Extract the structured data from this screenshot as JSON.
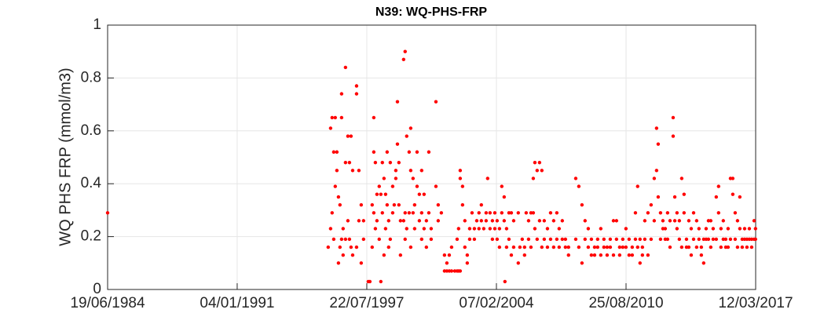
{
  "chart_data": {
    "type": "scatter",
    "title": "N39: WQ-PHS-FRP",
    "ylabel": "WQ PHS FRP (mmol/m3)",
    "color": "#ff0000",
    "grid": true,
    "xlim": [
      "19/06/1984",
      "12/03/2017"
    ],
    "xticks": [
      "19/06/1984",
      "04/01/1991",
      "22/07/1997",
      "07/02/2004",
      "25/08/2010",
      "12/03/2017"
    ],
    "ylim": [
      0,
      1
    ],
    "yticks": [
      0,
      0.2,
      0.4,
      0.6,
      0.8,
      1
    ],
    "x": [
      "19/06/1984",
      "10/08/1995",
      "23/09/1995",
      "23/09/1995",
      "21/10/1995",
      "21/10/1995",
      "20/11/1995",
      "20/11/1995",
      "18/12/1995",
      "18/12/1995",
      "17/01/1996",
      "17/01/1996",
      "15/02/1996",
      "15/02/1996",
      "14/03/1996",
      "14/03/1996",
      "13/04/1996",
      "13/04/1996",
      "13/04/1996",
      "11/05/1996",
      "11/05/1996",
      "24/06/1996",
      "24/06/1996",
      "24/06/1996",
      "07/08/1996",
      "07/08/1996",
      "05/09/1996",
      "05/09/1996",
      "04/10/1996",
      "04/10/1996",
      "03/11/1996",
      "03/11/1996",
      "14/01/1997",
      "14/01/1997",
      "14/01/1997",
      "26/02/1997",
      "26/02/1997",
      "10/04/1997",
      "10/04/1997",
      "23/05/1997",
      "23/05/1997",
      "18/08/1997",
      "17/09/1997",
      "29/10/1997",
      "29/10/1997",
      "28/11/1997",
      "28/11/1997",
      "28/11/1997",
      "27/12/1997",
      "27/12/1997",
      "25/01/1998",
      "25/01/1998",
      "08/03/1998",
      "08/03/1998",
      "07/04/1998",
      "07/04/1998",
      "05/05/1998",
      "05/05/1998",
      "04/06/1998",
      "04/06/1998",
      "03/07/1998",
      "03/07/1998",
      "01/08/1998",
      "01/08/1998",
      "29/08/1998",
      "29/08/1998",
      "28/09/1998",
      "28/09/1998",
      "11/11/1998",
      "11/11/1998",
      "10/12/1998",
      "08/01/1999",
      "08/01/1999",
      "07/02/1999",
      "07/02/1999",
      "06/03/1999",
      "06/03/1999",
      "04/04/1999",
      "04/04/1999",
      "01/06/1999",
      "01/06/1999",
      "29/06/1999",
      "29/06/1999",
      "29/06/1999",
      "28/07/1999",
      "28/07/1999",
      "11/09/1999",
      "11/09/1999",
      "10/10/1999",
      "10/10/1999",
      "10/10/1999",
      "22/11/1999",
      "22/11/1999",
      "21/12/1999",
      "21/12/1999",
      "04/02/2000",
      "04/02/2000",
      "17/03/2000",
      "17/03/2000",
      "29/04/2000",
      "29/04/2000",
      "29/04/2000",
      "12/06/2000",
      "12/06/2000",
      "25/07/2000",
      "25/07/2000",
      "08/09/2000",
      "08/09/2000",
      "21/10/2000",
      "21/10/2000",
      "17/01/2001",
      "17/01/2001",
      "28/02/2001",
      "28/02/2001",
      "27/04/2001",
      "24/06/2001",
      "24/06/2001",
      "07/08/2001",
      "07/08/2001",
      "20/09/2001",
      "20/09/2001",
      "02/11/2001",
      "02/11/2001",
      "30/12/2001",
      "12/02/2002",
      "12/02/2002",
      "11/03/2002",
      "11/03/2002",
      "10/04/2002",
      "10/04/2002",
      "10/04/2002",
      "23/05/2002",
      "23/05/2002",
      "05/07/2002",
      "05/07/2002",
      "18/08/2002",
      "18/08/2002",
      "01/10/2002",
      "01/10/2002",
      "14/11/2002",
      "27/12/2002",
      "27/12/2002",
      "09/02/2003",
      "22/03/2003",
      "22/03/2003",
      "05/05/2003",
      "05/05/2003",
      "18/06/2003",
      "01/08/2003",
      "01/08/2003",
      "29/08/2003",
      "12/10/2003",
      "12/10/2003",
      "25/11/2003",
      "25/11/2003",
      "08/01/2004",
      "08/01/2004",
      "20/02/2004",
      "20/02/2004",
      "03/04/2004",
      "03/04/2004",
      "16/05/2004",
      "16/05/2004",
      "29/06/2004",
      "29/06/2004",
      "13/07/2004",
      "12/08/2004",
      "12/08/2004",
      "25/09/2004",
      "25/09/2004",
      "08/11/2004",
      "08/11/2004",
      "21/12/2004",
      "21/12/2004",
      "16/03/2005",
      "16/03/2005",
      "15/04/2005",
      "28/05/2005",
      "10/07/2005",
      "10/07/2005",
      "09/08/2005",
      "22/09/2005",
      "22/09/2005",
      "05/11/2005",
      "05/11/2005",
      "18/12/2005",
      "18/12/2005",
      "16/01/2006",
      "16/01/2006",
      "27/02/2006",
      "27/02/2006",
      "12/04/2006",
      "12/04/2006",
      "25/05/2006",
      "25/05/2006",
      "08/07/2006",
      "08/07/2006",
      "05/09/2006",
      "05/09/2006",
      "02/11/2006",
      "02/11/2006",
      "29/12/2006",
      "29/12/2006",
      "25/02/2007",
      "25/02/2007",
      "09/04/2007",
      "09/04/2007",
      "06/06/2007",
      "06/06/2007",
      "03/08/2007",
      "03/08/2007",
      "29/09/2007",
      "29/09/2007",
      "09/02/2008",
      "09/02/2008",
      "06/04/2008",
      "06/04/2008",
      "03/06/2008",
      "03/06/2008",
      "30/07/2008",
      "30/07/2008",
      "27/09/2008",
      "27/09/2008",
      "24/11/2008",
      "24/11/2008",
      "22/01/2009",
      "22/01/2009",
      "19/03/2009",
      "19/03/2009",
      "16/05/2009",
      "16/05/2009",
      "13/07/2009",
      "13/07/2009",
      "10/09/2009",
      "10/09/2009",
      "07/11/2009",
      "07/11/2009",
      "05/01/2010",
      "05/01/2010",
      "02/03/2010",
      "02/03/2010",
      "29/04/2010",
      "29/04/2010",
      "26/06/2010",
      "26/06/2010",
      "23/08/2010",
      "23/08/2010",
      "20/10/2010",
      "20/10/2010",
      "17/12/2010",
      "17/12/2010",
      "14/02/2011",
      "14/02/2011",
      "27/03/2011",
      "27/03/2011",
      "10/05/2011",
      "10/05/2011",
      "23/06/2011",
      "23/06/2011",
      "06/08/2011",
      "06/08/2011",
      "03/10/2011",
      "03/10/2011",
      "30/11/2011",
      "30/11/2011",
      "27/01/2012",
      "27/01/2012",
      "10/03/2012",
      "10/03/2012",
      "09/04/2012",
      "09/04/2012",
      "22/05/2012",
      "22/05/2012",
      "05/07/2012",
      "05/07/2012",
      "17/08/2012",
      "17/08/2012",
      "29/09/2012",
      "29/09/2012",
      "13/11/2012",
      "13/11/2012",
      "10/01/2013",
      "10/01/2013",
      "09/02/2013",
      "09/02/2013",
      "22/03/2013",
      "22/03/2013",
      "04/05/2013",
      "04/05/2013",
      "17/06/2013",
      "17/06/2013",
      "30/07/2013",
      "30/07/2013",
      "13/09/2013",
      "13/09/2013",
      "26/10/2013",
      "26/10/2013",
      "09/12/2013",
      "09/12/2013",
      "22/01/2014",
      "22/01/2014",
      "19/03/2014",
      "19/03/2014",
      "01/05/2014",
      "01/05/2014",
      "14/06/2014",
      "14/06/2014",
      "27/07/2014",
      "27/07/2014",
      "10/09/2014",
      "10/09/2014",
      "23/10/2014",
      "23/10/2014",
      "05/12/2014",
      "05/12/2014",
      "18/01/2015",
      "18/01/2015",
      "16/03/2015",
      "16/03/2015",
      "28/04/2015",
      "28/04/2015",
      "11/06/2015",
      "11/06/2015",
      "24/07/2015",
      "24/07/2015",
      "07/09/2015",
      "07/09/2015",
      "20/10/2015",
      "20/10/2015",
      "03/12/2015",
      "03/12/2015",
      "15/01/2016",
      "15/01/2016",
      "28/02/2016",
      "28/02/2016",
      "11/04/2016",
      "11/04/2016",
      "24/05/2016",
      "24/05/2016",
      "07/07/2016",
      "07/07/2016",
      "20/08/2016",
      "20/08/2016",
      "02/10/2016",
      "02/10/2016",
      "15/11/2016",
      "15/11/2016",
      "28/12/2016",
      "28/12/2016",
      "11/02/2017",
      "11/02/2017",
      "09/03/2017",
      "09/03/2017"
    ],
    "values": [
      0.29,
      0.16,
      0.61,
      0.23,
      0.65,
      0.29,
      0.52,
      0.19,
      0.65,
      0.39,
      0.52,
      0.45,
      0.35,
      0.1,
      0.16,
      0.32,
      0.74,
      0.65,
      0.19,
      0.23,
      0.13,
      0.84,
      0.48,
      0.19,
      0.58,
      0.26,
      0.48,
      0.19,
      0.58,
      0.16,
      0.45,
      0.13,
      0.77,
      0.74,
      0.16,
      0.45,
      0.26,
      0.32,
      0.1,
      0.26,
      0.19,
      0.03,
      0.03,
      0.32,
      0.16,
      0.65,
      0.52,
      0.29,
      0.48,
      0.23,
      0.36,
      0.26,
      0.39,
      0.19,
      0.03,
      0.36,
      0.48,
      0.29,
      0.42,
      0.13,
      0.36,
      0.23,
      0.52,
      0.32,
      0.26,
      0.16,
      0.48,
      0.19,
      0.29,
      0.39,
      0.32,
      0.42,
      0.45,
      0.55,
      0.71,
      0.48,
      0.32,
      0.26,
      0.13,
      0.87,
      0.26,
      0.9,
      0.29,
      0.19,
      0.58,
      0.23,
      0.52,
      0.29,
      0.61,
      0.45,
      0.16,
      0.42,
      0.29,
      0.32,
      0.23,
      0.52,
      0.39,
      0.36,
      0.26,
      0.45,
      0.29,
      0.19,
      0.36,
      0.23,
      0.26,
      0.16,
      0.52,
      0.29,
      0.23,
      0.19,
      0.71,
      0.39,
      0.32,
      0.26,
      0.29,
      0.13,
      0.07,
      0.1,
      0.07,
      0.13,
      0.07,
      0.16,
      0.07,
      0.07,
      0.07,
      0.19,
      0.23,
      0.07,
      0.45,
      0.42,
      0.07,
      0.39,
      0.32,
      0.26,
      0.16,
      0.13,
      0.1,
      0.23,
      0.19,
      0.29,
      0.23,
      0.19,
      0.26,
      0.29,
      0.23,
      0.32,
      0.26,
      0.23,
      0.29,
      0.26,
      0.42,
      0.29,
      0.23,
      0.26,
      0.19,
      0.29,
      0.23,
      0.26,
      0.19,
      0.23,
      0.16,
      0.39,
      0.29,
      0.35,
      0.26,
      0.03,
      0.23,
      0.16,
      0.29,
      0.19,
      0.29,
      0.13,
      0.26,
      0.16,
      0.29,
      0.1,
      0.16,
      0.19,
      0.16,
      0.13,
      0.29,
      0.26,
      0.19,
      0.29,
      0.16,
      0.42,
      0.29,
      0.48,
      0.23,
      0.45,
      0.19,
      0.48,
      0.26,
      0.45,
      0.16,
      0.26,
      0.19,
      0.23,
      0.16,
      0.29,
      0.19,
      0.26,
      0.16,
      0.29,
      0.19,
      0.23,
      0.16,
      0.26,
      0.19,
      0.19,
      0.16,
      0.16,
      0.13,
      0.42,
      0.19,
      0.39,
      0.16,
      0.32,
      0.1,
      0.26,
      0.19,
      0.23,
      0.16,
      0.19,
      0.13,
      0.16,
      0.13,
      0.19,
      0.16,
      0.23,
      0.13,
      0.19,
      0.16,
      0.16,
      0.13,
      0.19,
      0.16,
      0.26,
      0.13,
      0.26,
      0.19,
      0.16,
      0.13,
      0.19,
      0.16,
      0.23,
      0.16,
      0.19,
      0.13,
      0.16,
      0.13,
      0.29,
      0.19,
      0.39,
      0.16,
      0.19,
      0.1,
      0.16,
      0.13,
      0.26,
      0.19,
      0.29,
      0.13,
      0.32,
      0.19,
      0.42,
      0.26,
      0.61,
      0.45,
      0.55,
      0.35,
      0.29,
      0.19,
      0.26,
      0.23,
      0.23,
      0.19,
      0.29,
      0.19,
      0.26,
      0.16,
      0.65,
      0.58,
      0.35,
      0.26,
      0.29,
      0.23,
      0.26,
      0.19,
      0.42,
      0.16,
      0.36,
      0.29,
      0.19,
      0.16,
      0.26,
      0.16,
      0.23,
      0.13,
      0.29,
      0.19,
      0.26,
      0.16,
      0.23,
      0.19,
      0.16,
      0.13,
      0.1,
      0.19,
      0.23,
      0.19,
      0.26,
      0.19,
      0.26,
      0.16,
      0.23,
      0.19,
      0.35,
      0.19,
      0.39,
      0.29,
      0.23,
      0.16,
      0.26,
      0.19,
      0.19,
      0.16,
      0.23,
      0.16,
      0.42,
      0.19,
      0.42,
      0.36,
      0.29,
      0.19,
      0.26,
      0.16,
      0.35,
      0.23,
      0.19,
      0.16,
      0.23,
      0.19,
      0.19,
      0.16,
      0.23,
      0.19,
      0.19,
      0.16,
      0.26,
      0.19,
      0.23,
      0.19
    ]
  }
}
